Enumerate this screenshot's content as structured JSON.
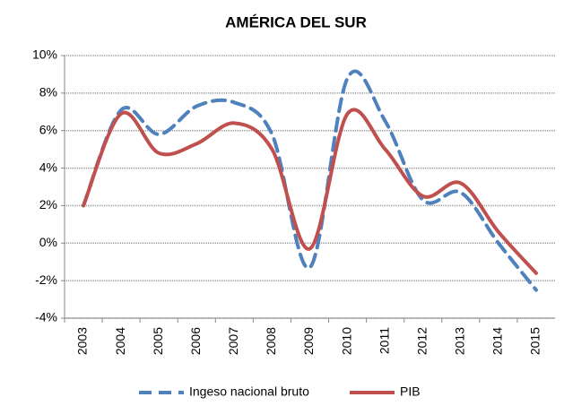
{
  "chart_data": {
    "type": "line",
    "title": "AMÉRICA DEL SUR",
    "categories": [
      "2003",
      "2004",
      "2005",
      "2006",
      "2007",
      "2008",
      "2009",
      "2010",
      "2011",
      "2012",
      "2013",
      "2014",
      "2015"
    ],
    "series": [
      {
        "name": "Ingeso nacional bruto",
        "color": "#4f81bd",
        "dashed": true,
        "values": [
          2.0,
          7.1,
          5.8,
          7.3,
          7.5,
          5.8,
          -1.3,
          8.8,
          6.5,
          2.3,
          2.7,
          0.0,
          -2.5
        ]
      },
      {
        "name": "PIB",
        "color": "#c0504d",
        "dashed": false,
        "values": [
          2.0,
          6.9,
          4.8,
          5.3,
          6.4,
          5.0,
          -0.3,
          6.9,
          5.0,
          2.5,
          3.2,
          0.6,
          -1.6
        ]
      }
    ],
    "ylim": [
      -4,
      10
    ],
    "yticks": [
      {
        "value": -4,
        "label": "-4%"
      },
      {
        "value": -2,
        "label": "-2%"
      },
      {
        "value": 0,
        "label": "0%"
      },
      {
        "value": 2,
        "label": "2%"
      },
      {
        "value": 4,
        "label": "4%"
      },
      {
        "value": 6,
        "label": "6%"
      },
      {
        "value": 8,
        "label": "8%"
      },
      {
        "value": 10,
        "label": "10%"
      }
    ],
    "grid": true,
    "smooth": true,
    "legend": "bottom"
  }
}
